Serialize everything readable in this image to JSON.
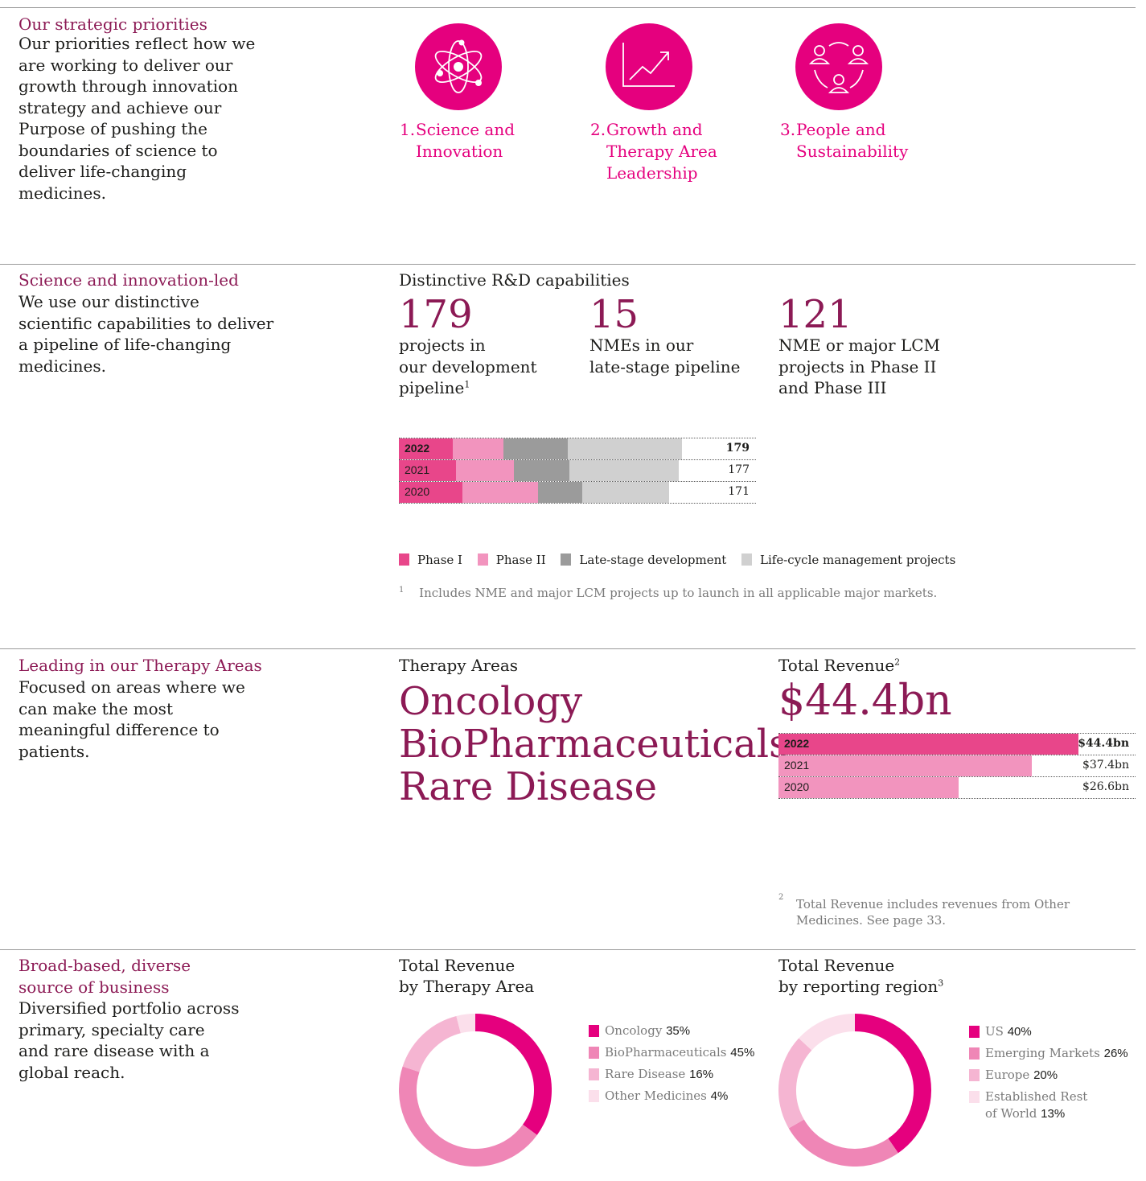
{
  "colors": {
    "magenta": "#e5007e",
    "plum": "#8c1a55",
    "phase1": "#e8468a",
    "phase2": "#f294be",
    "late": "#9b9b9b",
    "lcm": "#d0d0d0",
    "rare": "#f5b5d2",
    "other": "#fbdfeb"
  },
  "s1": {
    "title": "Our strategic priorities",
    "desc": "Our priorities reflect how we are working to deliver our growth through innovation strategy and achieve our Purpose of pushing the boundaries of science to deliver life-changing medicines.",
    "priorities": [
      {
        "num": "1.",
        "line1": "Science and",
        "line2": "Innovation",
        "line3": "",
        "icon": "atom-icon"
      },
      {
        "num": "2.",
        "line1": "Growth and",
        "line2": "Therapy Area",
        "line3": "Leadership",
        "icon": "growth-chart-icon"
      },
      {
        "num": "3.",
        "line1": "People and",
        "line2": "Sustainability",
        "line3": "",
        "icon": "people-cycle-icon"
      }
    ]
  },
  "s2": {
    "title": "Science and innovation-led",
    "desc": "We use our distinctive scientific capabilities to deliver a pipeline of life-changing medicines.",
    "subhead": "Distinctive R&D capabilities",
    "stats": [
      {
        "value": "179",
        "l1": "projects in",
        "l2": "our development",
        "l3": "pipeline",
        "sup": "1"
      },
      {
        "value": "15",
        "l1": "NMEs in our",
        "l2": "late-stage pipeline",
        "l3": "",
        "sup": ""
      },
      {
        "value": "121",
        "l1": "NME or major LCM",
        "l2": "projects in Phase II",
        "l3": "and Phase III",
        "sup": ""
      }
    ],
    "legend": [
      "Phase I",
      "Phase II",
      "Late-stage development",
      "Life-cycle management projects"
    ],
    "footnote_mark": "1",
    "footnote": "Includes NME and major LCM projects up to launch in all applicable major markets."
  },
  "chart_data": [
    {
      "type": "bar",
      "orientation": "horizontal",
      "stacked": true,
      "categories": [
        "2022",
        "2021",
        "2020"
      ],
      "series": [
        {
          "name": "Phase I",
          "values": [
            34,
            36,
            40
          ]
        },
        {
          "name": "Phase II",
          "values": [
            32,
            37,
            48
          ]
        },
        {
          "name": "Late-stage development",
          "values": [
            41,
            35,
            28
          ]
        },
        {
          "name": "Life-cycle management projects",
          "values": [
            72,
            69,
            55
          ]
        }
      ],
      "totals": [
        "179",
        "177",
        "171"
      ],
      "xlim": [
        0,
        226
      ]
    },
    {
      "type": "bar",
      "orientation": "horizontal",
      "categories": [
        "2022",
        "2021",
        "2020"
      ],
      "values": [
        44.4,
        37.4,
        26.6
      ],
      "labels": [
        "$44.4bn",
        "$37.4bn",
        "$26.6bn"
      ],
      "xlim": [
        0,
        52.8
      ]
    },
    {
      "type": "pie",
      "donut": true,
      "title": "Total Revenue by Therapy Area",
      "labels": [
        "Oncology",
        "BioPharmaceuticals",
        "Rare Disease",
        "Other Medicines"
      ],
      "values": [
        35,
        45,
        16,
        4
      ],
      "value_labels": [
        "35%",
        "45%",
        "16%",
        "4%"
      ]
    },
    {
      "type": "pie",
      "donut": true,
      "title": "Total Revenue by reporting region",
      "labels": [
        "US",
        "Emerging Markets",
        "Europe",
        "Established Rest of World"
      ],
      "values": [
        40,
        26,
        20,
        13
      ],
      "value_labels": [
        "40%",
        "26%",
        "20%",
        "13%"
      ]
    }
  ],
  "s3": {
    "title": "Leading in our Therapy Areas",
    "desc": "Focused on areas where we can make the most meaningful difference to patients.",
    "ta_head": "Therapy Areas",
    "areas": [
      "Oncology",
      "BioPharmaceuticals",
      "Rare Disease"
    ],
    "rev_head": "Total Revenue",
    "rev_sup": "2",
    "rev_value": "$44.4bn",
    "footnote_mark": "2",
    "footnote": "Total Revenue includes revenues from Other Medicines. See page 33."
  },
  "s4": {
    "title1": "Broad-based, diverse",
    "title2": "source of business",
    "desc": "Diversified portfolio across primary, specialty care and rare disease with a global reach.",
    "ta_h1": "Total Revenue",
    "ta_h2": "by Therapy Area",
    "rg_h1": "Total Revenue",
    "rg_h2": "by reporting region",
    "rg_sup": "3",
    "ta_legend": [
      {
        "name": "Oncology",
        "pct": "35%"
      },
      {
        "name": "BioPharmaceuticals",
        "pct": "45%"
      },
      {
        "name": "Rare Disease",
        "pct": "16%"
      },
      {
        "name": "Other Medicines",
        "pct": "4%"
      }
    ],
    "rg_legend": [
      {
        "name": "US",
        "pct": "40%"
      },
      {
        "name": "Emerging Markets",
        "pct": "26%"
      },
      {
        "name": "Europe",
        "pct": "20%"
      },
      {
        "name": "Established Rest",
        "name2": "of World",
        "pct": "13%"
      }
    ]
  }
}
